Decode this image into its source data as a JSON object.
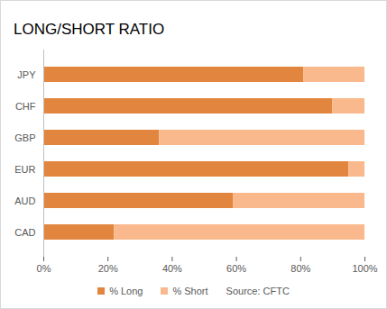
{
  "chart_data": {
    "type": "bar",
    "title": "LONG/SHORT RATIO",
    "orientation": "horizontal",
    "stacked": true,
    "legend": "bottom",
    "grid": false,
    "categories": [
      "JPY",
      "CHF",
      "GBP",
      "EUR",
      "AUD",
      "CAD"
    ],
    "series": [
      {
        "name": "% Long",
        "color": "#e2863f",
        "values": [
          81,
          90,
          36,
          95,
          59,
          22
        ]
      },
      {
        "name": "% Short",
        "color": "#f9b98c",
        "values": [
          19,
          10,
          64,
          5,
          41,
          78
        ]
      }
    ],
    "xlim": [
      0,
      100
    ],
    "xticks": [
      {
        "value": 0,
        "label": "0%"
      },
      {
        "value": 20,
        "label": "20%"
      },
      {
        "value": 40,
        "label": "40%"
      },
      {
        "value": 60,
        "label": "60%"
      },
      {
        "value": 80,
        "label": "80%"
      },
      {
        "value": 100,
        "label": "100%"
      }
    ],
    "annotations": [
      "Source: CFTC"
    ]
  }
}
